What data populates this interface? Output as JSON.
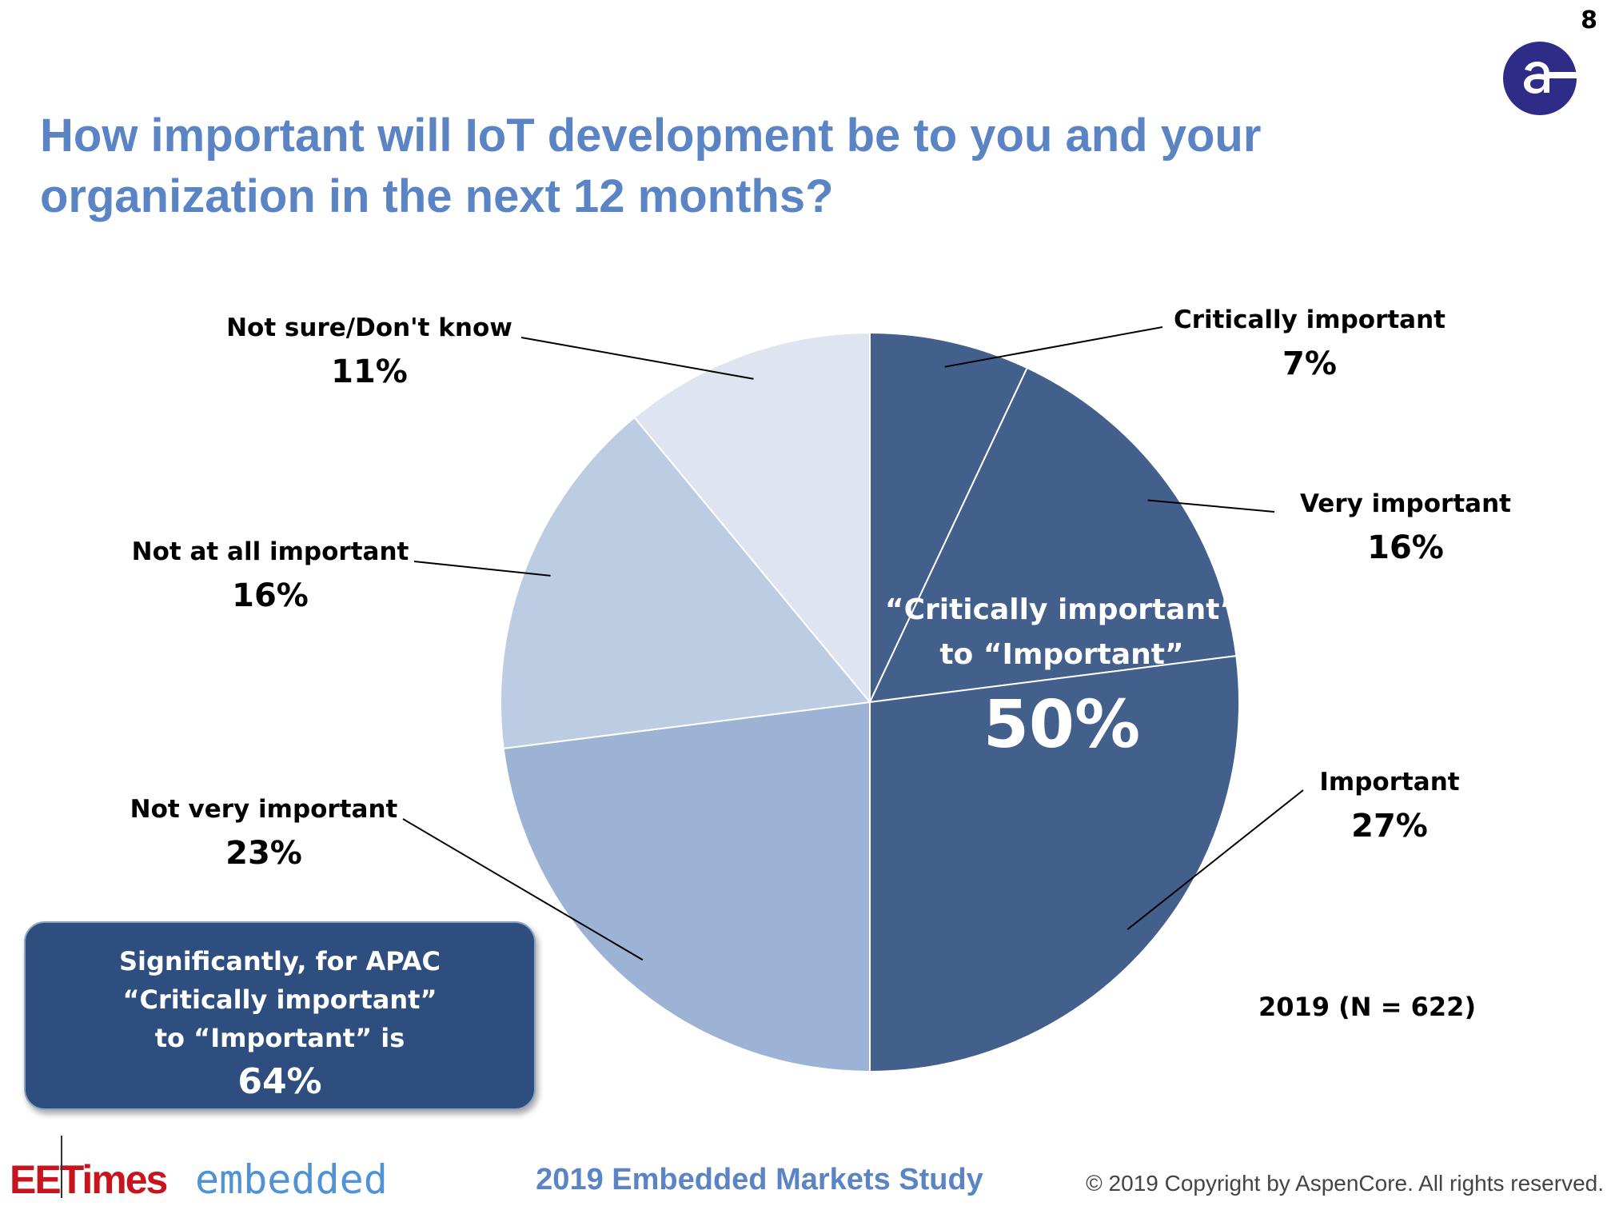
{
  "page_number": "8",
  "title": "How important will IoT development be to you and your organization in the next 12 months?",
  "logo": {
    "icon": "aspencore-logo-icon",
    "color": "#2e2c87"
  },
  "chart_data": {
    "type": "pie",
    "title": "How important will IoT development be to you and your organization in the next 12 months?",
    "slices": [
      {
        "label": "Critically important",
        "value": 7,
        "value_label": "7%",
        "color": "#435f8c"
      },
      {
        "label": "Very important",
        "value": 16,
        "value_label": "16%",
        "color": "#435f8c"
      },
      {
        "label": "Important",
        "value": 27,
        "value_label": "27%",
        "color": "#435f8c"
      },
      {
        "label": "Not very important",
        "value": 23,
        "value_label": "23%",
        "color": "#9cb3d5"
      },
      {
        "label": "Not at all important",
        "value": 16,
        "value_label": "16%",
        "color": "#bccde3"
      },
      {
        "label": "Not sure/Don't know",
        "value": 11,
        "value_label": "11%",
        "color": "#dee5f0"
      }
    ],
    "inner_annotation": {
      "line1": "“Critically important”",
      "line2": "to “Important”",
      "value": "50%"
    },
    "sample_note": "2019 (N = 622)"
  },
  "callout": {
    "line1": "Significantly, for APAC",
    "line2": "“Critically  important”",
    "line3": "to “Important” is",
    "value": "64%"
  },
  "footer": {
    "brand1": "EETimes",
    "brand2": "embedded",
    "study": "2019 Embedded Markets Study",
    "copyright": "© 2019 Copyright by AspenCore. All rights reserved."
  }
}
